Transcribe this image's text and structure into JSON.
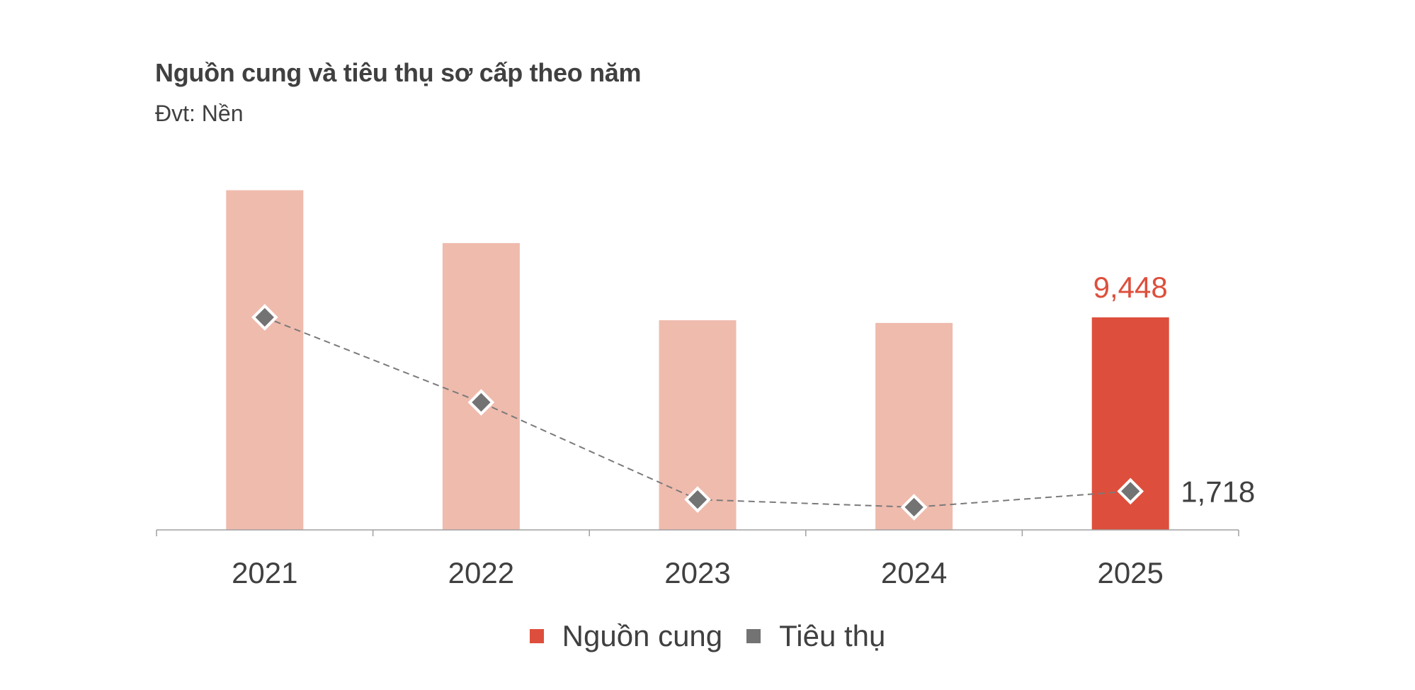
{
  "header": {
    "title": "Nguồn cung và tiêu thụ sơ cấp theo năm",
    "subtitle": "Đvt: Nền"
  },
  "colors": {
    "supply_bar": "#EFBBAD",
    "supply_highlight": "#DD4F3C",
    "consumption_marker": "#737373",
    "line": "#7a7a7a",
    "axis": "#a0a0a0",
    "text": "#404040",
    "highlight_label": "#DD4F3C"
  },
  "legend": {
    "items": [
      {
        "label": "Nguồn cung",
        "color": "#DD4F3C"
      },
      {
        "label": "Tiêu thụ",
        "color": "#737373"
      }
    ]
  },
  "chart_data": {
    "type": "bar",
    "title": "Nguồn cung và tiêu thụ sơ cấp theo năm",
    "subtitle": "Đvt: Nền",
    "xlabel": "",
    "ylabel": "",
    "categories": [
      "2021",
      "2022",
      "2023",
      "2024",
      "2025"
    ],
    "series": [
      {
        "name": "Nguồn cung",
        "kind": "bar",
        "values": [
          15100,
          12750,
          9320,
          9200,
          9448
        ],
        "highlight_index": 4
      },
      {
        "name": "Tiêu thụ",
        "kind": "line",
        "style": "dashed",
        "marker": "diamond",
        "values": [
          9450,
          5670,
          1350,
          1010,
          1718
        ]
      }
    ],
    "data_labels": [
      {
        "series": "Nguồn cung",
        "category": "2025",
        "text": "9,448"
      },
      {
        "series": "Tiêu thụ",
        "category": "2025",
        "text": "1,718"
      }
    ],
    "ylim": [
      0,
      15500
    ],
    "grid": false,
    "legend_position": "bottom"
  }
}
